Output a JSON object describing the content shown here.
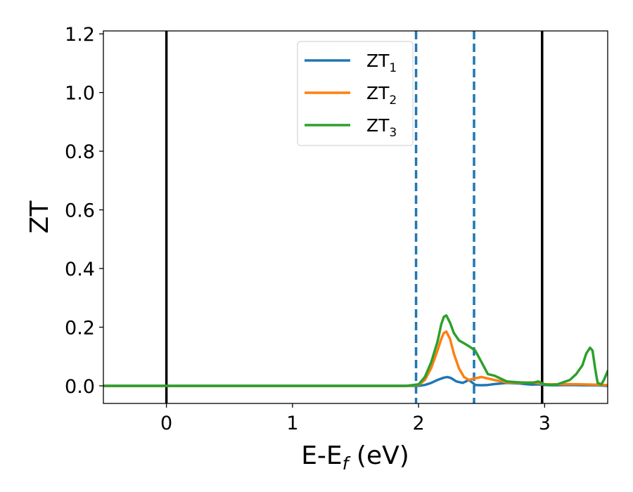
{
  "chart_data": {
    "type": "line",
    "xlabel_main": "E-E",
    "xlabel_sub": "f",
    "xlabel_unit": " (eV)",
    "ylabel": "ZT",
    "xlim": [
      -0.5,
      3.5
    ],
    "ylim": [
      -0.06,
      1.21
    ],
    "grid": false,
    "legend_position": "top-center",
    "xticks": [
      0,
      1,
      2,
      3
    ],
    "xtick_labels": [
      "0",
      "1",
      "2",
      "3"
    ],
    "yticks": [
      0.0,
      0.2,
      0.4,
      0.6,
      0.8,
      1.0,
      1.2
    ],
    "ytick_labels": [
      "0.0",
      "0.2",
      "0.4",
      "0.6",
      "0.8",
      "1.0",
      "1.2"
    ],
    "vlines_solid": [
      0.0,
      2.98
    ],
    "vlines_dashed": [
      1.98,
      2.44
    ],
    "vline_solid_color": "#000000",
    "vline_dashed_color": "#1f77b4",
    "series": [
      {
        "name": "ZT",
        "name_sub": "1",
        "color": "#1f77b4",
        "x": [
          -0.5,
          1.9,
          2.0,
          2.05,
          2.1,
          2.15,
          2.2,
          2.23,
          2.26,
          2.3,
          2.35,
          2.4,
          2.45,
          2.5,
          2.55,
          2.6,
          2.7,
          2.8,
          2.85,
          2.9,
          2.95,
          3.0,
          3.05,
          3.1,
          3.2,
          3.3,
          3.4,
          3.45,
          3.5
        ],
        "y": [
          0.0,
          0.0,
          0.0,
          0.003,
          0.01,
          0.02,
          0.028,
          0.03,
          0.026,
          0.015,
          0.01,
          0.02,
          0.003,
          0.002,
          0.003,
          0.006,
          0.01,
          0.008,
          0.006,
          0.004,
          0.005,
          0.003,
          0.002,
          0.002,
          0.003,
          0.002,
          0.002,
          0.001,
          0.0
        ]
      },
      {
        "name": "ZT",
        "name_sub": "2",
        "color": "#ff7f0e",
        "x": [
          -0.5,
          1.9,
          2.0,
          2.05,
          2.1,
          2.15,
          2.18,
          2.2,
          2.22,
          2.25,
          2.28,
          2.32,
          2.36,
          2.4,
          2.44,
          2.5,
          2.55,
          2.6,
          2.7,
          2.8,
          2.9,
          3.0,
          3.1,
          3.2,
          3.3,
          3.4,
          3.45,
          3.5
        ],
        "y": [
          0.0,
          0.0,
          0.003,
          0.02,
          0.06,
          0.12,
          0.16,
          0.18,
          0.185,
          0.16,
          0.11,
          0.06,
          0.03,
          0.02,
          0.025,
          0.03,
          0.025,
          0.02,
          0.012,
          0.01,
          0.012,
          0.006,
          0.005,
          0.006,
          0.005,
          0.004,
          0.003,
          0.003
        ]
      },
      {
        "name": "ZT",
        "name_sub": "3",
        "color": "#2ca02c",
        "x": [
          -0.5,
          1.9,
          2.0,
          2.05,
          2.1,
          2.15,
          2.18,
          2.2,
          2.22,
          2.25,
          2.28,
          2.32,
          2.36,
          2.4,
          2.45,
          2.5,
          2.55,
          2.6,
          2.65,
          2.7,
          2.8,
          2.9,
          2.95,
          3.0,
          3.05,
          3.1,
          3.2,
          3.25,
          3.3,
          3.33,
          3.36,
          3.38,
          3.4,
          3.42,
          3.45,
          3.47,
          3.5
        ],
        "y": [
          0.0,
          0.0,
          0.005,
          0.03,
          0.08,
          0.15,
          0.21,
          0.235,
          0.24,
          0.215,
          0.18,
          0.155,
          0.145,
          0.135,
          0.12,
          0.08,
          0.04,
          0.035,
          0.025,
          0.015,
          0.012,
          0.01,
          0.015,
          0.005,
          0.003,
          0.005,
          0.02,
          0.04,
          0.07,
          0.11,
          0.13,
          0.12,
          0.06,
          0.01,
          0.005,
          0.02,
          0.05
        ]
      }
    ]
  }
}
